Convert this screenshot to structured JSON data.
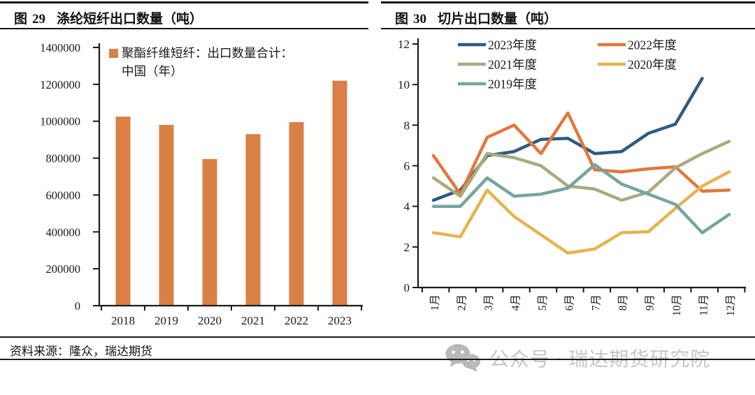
{
  "figures": [
    {
      "label": "图",
      "number": "29",
      "title": "涤纶短纤出口数量（吨）"
    },
    {
      "label": "图",
      "number": "30",
      "title": "切片出口数量（吨）"
    }
  ],
  "chart_data": [
    {
      "type": "bar",
      "title": "涤纶短纤出口数量（吨）",
      "legend": "聚酯纤维短纤：出口数量合计：中国（年）",
      "legend_lines": [
        "聚酯纤维短纤：出口数量合计：",
        "中国（年）"
      ],
      "categories": [
        "2018",
        "2019",
        "2020",
        "2021",
        "2022",
        "2023"
      ],
      "values": [
        1025000,
        980000,
        795000,
        930000,
        995000,
        1220000
      ],
      "bar_color": "#DA8046",
      "ylim": [
        0,
        1400000
      ],
      "ytick_labels": [
        "0",
        "200000",
        "400000",
        "600000",
        "800000",
        "1000000",
        "1200000",
        "1400000"
      ],
      "grid": false,
      "legend_position": "top-left"
    },
    {
      "type": "line",
      "title": "切片出口数量（吨）",
      "x_labels": [
        "1月",
        "2月",
        "3月",
        "4月",
        "5月",
        "6月",
        "7月",
        "8月",
        "9月",
        "10月",
        "11月",
        "12月"
      ],
      "ylim": [
        0,
        12
      ],
      "ytick_labels": [
        "0",
        "2",
        "4",
        "6",
        "8",
        "10",
        "12"
      ],
      "grid": false,
      "legend_position": "top",
      "series": [
        {
          "name": "2023年度",
          "color": "#2E5B80",
          "values": [
            4.3,
            4.8,
            6.5,
            6.7,
            7.3,
            7.35,
            6.6,
            6.7,
            7.6,
            8.05,
            10.3,
            null
          ]
        },
        {
          "name": "2022年度",
          "color": "#E0783C",
          "values": [
            6.5,
            4.6,
            7.4,
            8.0,
            6.6,
            8.6,
            5.8,
            5.7,
            5.85,
            5.95,
            4.75,
            4.8
          ]
        },
        {
          "name": "2021年度",
          "color": "#A6AC7F",
          "values": [
            5.4,
            4.5,
            6.6,
            6.4,
            6.0,
            5.0,
            4.85,
            4.3,
            4.7,
            5.9,
            6.6,
            7.2
          ]
        },
        {
          "name": "2020年度",
          "color": "#E4B54F",
          "values": [
            2.7,
            2.5,
            4.8,
            3.5,
            2.6,
            1.7,
            1.9,
            2.7,
            2.75,
            3.9,
            5.0,
            5.7
          ]
        },
        {
          "name": "2019年度",
          "color": "#74A5A0",
          "values": [
            4.0,
            4.0,
            5.4,
            4.5,
            4.6,
            4.9,
            6.05,
            5.1,
            4.6,
            4.1,
            2.7,
            3.6
          ]
        }
      ]
    }
  ],
  "footer": {
    "source": "资料来源：隆众，瑞达期货"
  },
  "watermark": {
    "text": "公众号 · 瑞达期货研究院",
    "icon": "wechat-icon",
    "color": "#c6c6c6"
  }
}
